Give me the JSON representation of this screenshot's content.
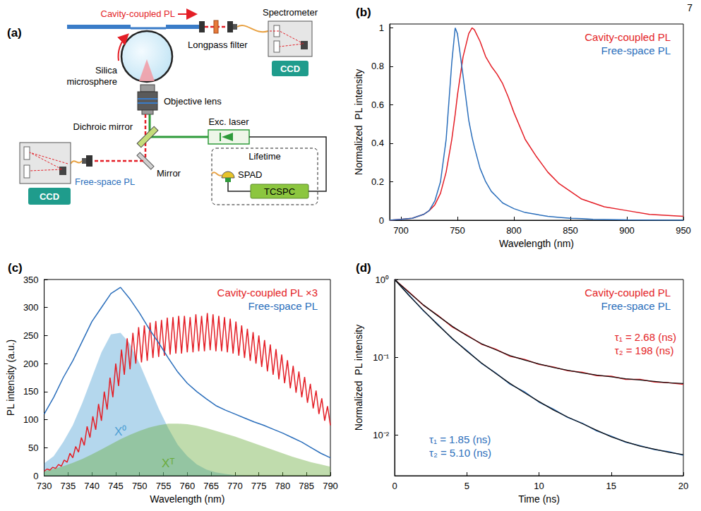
{
  "page_number": 7,
  "diagram": {
    "label": "(a)",
    "texts": {
      "cavity_pl": "Cavity-coupled PL",
      "spectrometer": "Spectrometer",
      "longpass_filter": "Longpass filter",
      "ccd_top": "CCD",
      "microsphere": "Silica microsphere",
      "objective": "Objective lens",
      "dichroic": "Dichroic mirror",
      "laser": "Exc. laser",
      "lifetime": "Lifetime",
      "spad": "SPAD",
      "tcspc": "TCSPC",
      "mirror": "Mirror",
      "free_space_pl": "Free-space PL",
      "ccd_bottom": "CCD"
    }
  },
  "chart_data": [
    {
      "panel": "(b)",
      "type": "line",
      "x_label": "Wavelength (nm)",
      "y_label": "Normalized  PL intensity",
      "xlim": [
        690,
        950
      ],
      "xticks": [
        700,
        750,
        800,
        850,
        900,
        950
      ],
      "ylim": [
        0,
        1.02
      ],
      "yticks": [
        0,
        0.2,
        0.4,
        0.6,
        0.8,
        1
      ],
      "grid": false,
      "legend": "top-right",
      "x": [
        690,
        700,
        710,
        720,
        725,
        730,
        735,
        740,
        745,
        748,
        750,
        755,
        760,
        763,
        765,
        770,
        775,
        780,
        785,
        790,
        795,
        800,
        810,
        820,
        830,
        840,
        850,
        860,
        870,
        880,
        900,
        920,
        950
      ],
      "series": [
        {
          "name": "Cavity-coupled PL",
          "color": "#e41e26",
          "values": [
            0,
            0.005,
            0.01,
            0.03,
            0.05,
            0.08,
            0.14,
            0.25,
            0.42,
            0.55,
            0.65,
            0.85,
            0.97,
            1,
            0.99,
            0.93,
            0.85,
            0.8,
            0.76,
            0.71,
            0.64,
            0.56,
            0.42,
            0.33,
            0.25,
            0.19,
            0.15,
            0.11,
            0.09,
            0.07,
            0.05,
            0.03,
            0.02
          ]
        },
        {
          "name": "Free-space PL",
          "color": "#2a6ebb",
          "values": [
            0,
            0.005,
            0.01,
            0.03,
            0.05,
            0.1,
            0.2,
            0.42,
            0.82,
            1,
            0.97,
            0.75,
            0.52,
            0.43,
            0.38,
            0.27,
            0.2,
            0.15,
            0.12,
            0.09,
            0.075,
            0.06,
            0.04,
            0.03,
            0.02,
            0.015,
            0.01,
            0.008,
            0.005,
            0.004,
            0.002,
            0.001,
            0
          ]
        }
      ]
    },
    {
      "panel": "(c)",
      "type": "line",
      "x_label": "Wavelength (nm)",
      "y_label": "PL intensity (a.u.)",
      "xlim": [
        730,
        790
      ],
      "xticks": [
        730,
        735,
        740,
        745,
        750,
        755,
        760,
        765,
        770,
        775,
        780,
        785,
        790
      ],
      "ylim": [
        0,
        350
      ],
      "yticks": [
        0,
        50,
        100,
        150,
        200,
        250,
        300,
        350
      ],
      "grid": false,
      "legend": "top-right",
      "x": [
        730,
        732,
        734,
        736,
        738,
        740,
        742,
        744,
        746,
        748,
        750,
        752,
        754,
        756,
        758,
        760,
        762,
        764,
        766,
        768,
        770,
        772,
        774,
        776,
        778,
        780,
        782,
        784,
        786,
        788,
        790
      ],
      "series": [
        {
          "name": "X⁰",
          "type": "area",
          "color": "#4d9fd4",
          "values": [
            22,
            35,
            60,
            90,
            130,
            175,
            220,
            252,
            255,
            235,
            200,
            160,
            120,
            85,
            55,
            35,
            20,
            11,
            6,
            3,
            1,
            0,
            0,
            0,
            0,
            0,
            0,
            0,
            0,
            0,
            0
          ]
        },
        {
          "name": "Xᵀ",
          "type": "area",
          "color": "#6aab3c",
          "values": [
            8,
            12,
            17,
            23,
            30,
            38,
            47,
            56,
            65,
            73,
            80,
            86,
            90,
            93,
            93,
            92,
            89,
            85,
            80,
            75,
            70,
            64,
            58,
            52,
            46,
            40,
            34,
            29,
            24,
            20,
            16
          ]
        },
        {
          "name": "Cavity-coupled PL ×3",
          "color": "#e41e26",
          "x": [
            730,
            730.6,
            731.2,
            731.8,
            732.4,
            733,
            733.6,
            734.2,
            734.8,
            735.4,
            736,
            736.6,
            737.2,
            737.8,
            738.4,
            739,
            739.6,
            740.2,
            740.8,
            741.4,
            742,
            742.6,
            743.2,
            743.8,
            744.4,
            745,
            745.6,
            746.2,
            746.8,
            747.4,
            748,
            748.6,
            749.2,
            749.8,
            750.4,
            751,
            751.6,
            752.2,
            752.8,
            753.4,
            754,
            754.6,
            755.2,
            755.8,
            756.4,
            757,
            757.6,
            758.2,
            758.8,
            759.4,
            760,
            760.6,
            761.2,
            761.8,
            762.4,
            763,
            763.6,
            764.2,
            764.8,
            765.4,
            766,
            766.6,
            767.2,
            767.8,
            768.4,
            769,
            769.6,
            770.2,
            770.8,
            771.4,
            772,
            772.6,
            773.2,
            773.8,
            774.4,
            775,
            775.6,
            776.2,
            776.8,
            777.4,
            778,
            778.6,
            779.2,
            779.8,
            780.4,
            781,
            781.6,
            782.2,
            782.8,
            783.4,
            784,
            784.6,
            785.2,
            785.8,
            786.4,
            787,
            787.6,
            788.2,
            788.8,
            789.4,
            790
          ],
          "values": [
            8,
            12,
            10,
            15,
            13,
            20,
            17,
            28,
            24,
            40,
            32,
            52,
            42,
            68,
            54,
            88,
            68,
            106,
            82,
            128,
            98,
            150,
            118,
            175,
            140,
            200,
            160,
            225,
            180,
            245,
            190,
            255,
            200,
            265,
            202,
            268,
            205,
            273,
            210,
            276,
            212,
            278,
            214,
            282,
            216,
            283,
            218,
            285,
            218,
            285,
            220,
            283,
            220,
            288,
            222,
            285,
            222,
            290,
            224,
            288,
            222,
            285,
            222,
            283,
            220,
            280,
            218,
            275,
            214,
            268,
            210,
            262,
            205,
            256,
            200,
            250,
            194,
            242,
            186,
            234,
            180,
            226,
            172,
            216,
            165,
            206,
            156,
            196,
            148,
            186,
            140,
            176,
            130,
            164,
            120,
            152,
            110,
            138,
            98,
            124,
            90
          ]
        },
        {
          "name": "Free-space PL",
          "color": "#2a6ebb",
          "values": [
            110,
            140,
            175,
            205,
            240,
            275,
            300,
            325,
            336,
            315,
            290,
            262,
            237,
            210,
            185,
            165,
            150,
            137,
            125,
            117,
            110,
            103,
            96,
            90,
            83,
            76,
            68,
            60,
            50,
            40,
            32
          ]
        }
      ]
    },
    {
      "panel": "(d)",
      "type": "line",
      "x_label": "Time (ns)",
      "y_label": "Normalized  PL intensity",
      "log": "y",
      "xlim": [
        0,
        20
      ],
      "xticks": [
        0,
        5,
        10,
        15,
        20
      ],
      "ylim": [
        0.003,
        1
      ],
      "yticks": [
        {
          "value": 0.01,
          "label": "10⁻²"
        },
        {
          "value": 0.1,
          "label": "10⁻¹"
        },
        {
          "value": 1,
          "label": "10⁰"
        }
      ],
      "grid": false,
      "legend": "top-right",
      "x": [
        0,
        1,
        2,
        3,
        4,
        5,
        6,
        7,
        8,
        9,
        10,
        11,
        12,
        13,
        14,
        15,
        16,
        17,
        18,
        19,
        20
      ],
      "series": [
        {
          "name": "Cavity-coupled PL",
          "color": "#e41e26",
          "values": [
            1,
            0.69,
            0.465,
            0.345,
            0.245,
            0.193,
            0.148,
            0.127,
            0.103,
            0.094,
            0.081,
            0.075,
            0.067,
            0.064,
            0.058,
            0.057,
            0.052,
            0.052,
            0.048,
            0.047,
            0.045
          ],
          "fit": [
            1,
            0.68,
            0.47,
            0.34,
            0.25,
            0.19,
            0.15,
            0.125,
            0.105,
            0.092,
            0.082,
            0.074,
            0.068,
            0.063,
            0.059,
            0.056,
            0.053,
            0.051,
            0.049,
            0.047,
            0.046
          ],
          "annotations": [
            "τ₁ = 2.68 (ns)",
            "τ₂ = 198 (ns)"
          ]
        },
        {
          "name": "Free-space PL",
          "color": "#2a6ebb",
          "values": [
            1,
            0.63,
            0.395,
            0.265,
            0.172,
            0.122,
            0.084,
            0.063,
            0.045,
            0.036,
            0.0265,
            0.0215,
            0.0168,
            0.0142,
            0.0113,
            0.0097,
            0.0081,
            0.0073,
            0.0065,
            0.0061,
            0.0055
          ],
          "fit": [
            1,
            0.62,
            0.4,
            0.26,
            0.175,
            0.12,
            0.085,
            0.062,
            0.046,
            0.035,
            0.027,
            0.021,
            0.017,
            0.014,
            0.0115,
            0.0095,
            0.0082,
            0.0072,
            0.0066,
            0.006,
            0.0056
          ],
          "annotations": [
            "τ₁ = 1.85 (ns)",
            "τ₂ = 5.10 (ns)"
          ]
        }
      ]
    }
  ]
}
